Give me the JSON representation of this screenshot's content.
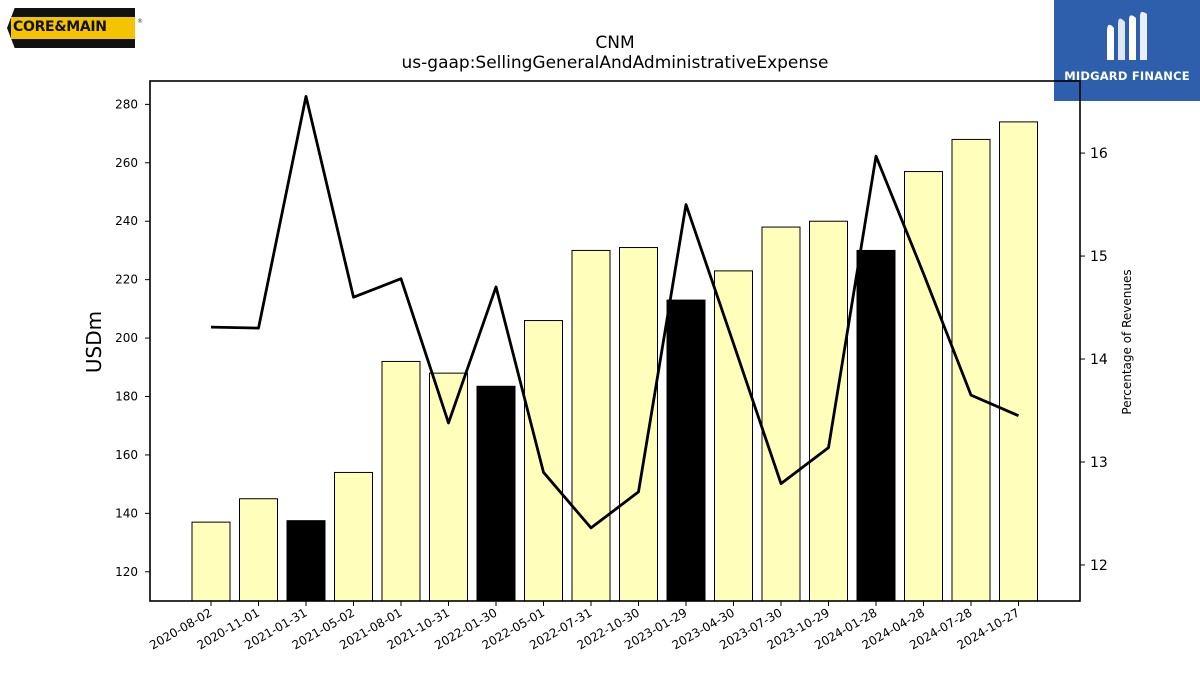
{
  "logos": {
    "left": {
      "text": "CORE&MAIN"
    },
    "right": {
      "text": "MIDGARD FINANCE"
    }
  },
  "colors": {
    "bar_fill": "#ffffbb",
    "bar_highlight": "#000000",
    "line": "#000000",
    "midgard_bg": "#2d5fad",
    "core_main_yellow": "#f5c400"
  },
  "chart_data": {
    "type": "bar",
    "title": "CNM",
    "subtitle": "us-gaap:SellingGeneralAndAdministrativeExpense",
    "ylabel": "USDm",
    "y2label": "Percentage of Revenues",
    "ylim": [
      110,
      288
    ],
    "y2lim": [
      11.65,
      16.7
    ],
    "yticks": [
      120,
      140,
      160,
      180,
      200,
      220,
      240,
      260,
      280
    ],
    "y2ticks": [
      12,
      13,
      14,
      15,
      16
    ],
    "grid": false,
    "categories": [
      "2020-08-02",
      "2020-11-01",
      "2021-01-31",
      "2021-05-02",
      "2021-08-01",
      "2021-10-31",
      "2022-01-30",
      "2022-05-01",
      "2022-07-31",
      "2022-10-30",
      "2023-01-29",
      "2023-04-30",
      "2023-07-30",
      "2023-10-29",
      "2024-01-28",
      "2024-04-28",
      "2024-07-28",
      "2024-10-27"
    ],
    "series": [
      {
        "type": "bar",
        "axis": "left",
        "values": [
          137,
          145,
          137.5,
          154,
          192,
          188,
          183.5,
          206,
          230,
          231,
          213,
          223,
          238,
          240,
          230,
          257,
          268,
          274
        ],
        "highlight": [
          false,
          false,
          true,
          false,
          false,
          false,
          true,
          false,
          false,
          false,
          true,
          false,
          false,
          false,
          true,
          false,
          false,
          false
        ]
      },
      {
        "type": "line",
        "axis": "right",
        "values": [
          14.31,
          14.3,
          16.55,
          14.6,
          14.78,
          13.38,
          14.7,
          12.9,
          12.36,
          12.71,
          15.5,
          14.15,
          12.79,
          13.14,
          15.97,
          14.83,
          13.65,
          13.45
        ]
      }
    ]
  }
}
